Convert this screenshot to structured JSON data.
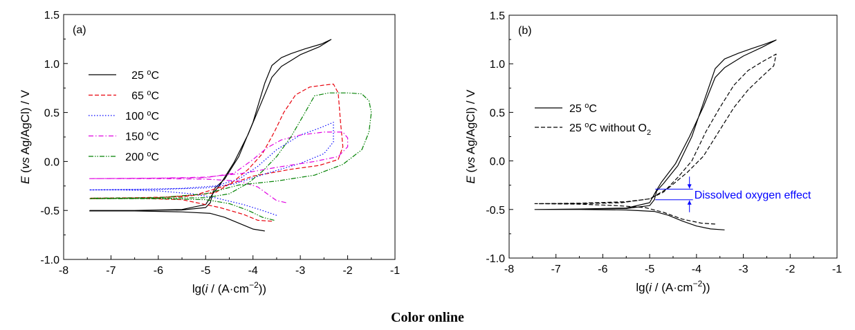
{
  "caption": "Color online",
  "chart_data": [
    {
      "type": "line",
      "panel_label": "(a)",
      "xlim": [
        -8,
        -1
      ],
      "ylim": [
        -1.0,
        1.5
      ],
      "x_ticks": [
        "-8",
        "-7",
        "-6",
        "-5",
        "-4",
        "-3",
        "-2",
        "-1"
      ],
      "y_ticks": [
        "-1.0",
        "-0.5",
        "0.0",
        "0.5",
        "1.0",
        "1.5"
      ],
      "legend_position": "upper-left",
      "series": [
        {
          "name": "25 °C",
          "color": "#000000",
          "style": "solid",
          "points": [
            [
              -3.75,
              -0.71
            ],
            [
              -4.0,
              -0.69
            ],
            [
              -4.3,
              -0.63
            ],
            [
              -4.6,
              -0.57
            ],
            [
              -4.9,
              -0.53
            ],
            [
              -5.5,
              -0.515
            ],
            [
              -6.5,
              -0.505
            ],
            [
              -7.45,
              -0.505
            ],
            [
              -6.5,
              -0.5
            ],
            [
              -5.5,
              -0.495
            ],
            [
              -5.0,
              -0.47
            ],
            [
              -4.9,
              -0.42
            ],
            [
              -4.85,
              -0.32
            ],
            [
              -4.8,
              -0.27
            ],
            [
              -4.6,
              -0.18
            ],
            [
              -4.3,
              0.05
            ],
            [
              -4.0,
              0.4
            ],
            [
              -3.75,
              0.8
            ],
            [
              -3.6,
              0.98
            ],
            [
              -3.4,
              1.06
            ],
            [
              -3.2,
              1.1
            ],
            [
              -2.9,
              1.15
            ],
            [
              -2.55,
              1.2
            ],
            [
              -2.35,
              1.245
            ],
            [
              -2.6,
              1.17
            ],
            [
              -3.0,
              1.09
            ],
            [
              -3.2,
              1.03
            ],
            [
              -3.4,
              0.97
            ],
            [
              -3.6,
              0.86
            ],
            [
              -3.85,
              0.57
            ],
            [
              -4.1,
              0.28
            ],
            [
              -4.4,
              -0.01
            ],
            [
              -4.7,
              -0.24
            ],
            [
              -4.85,
              -0.33
            ],
            [
              -5.0,
              -0.44
            ],
            [
              -5.5,
              -0.49
            ],
            [
              -6.5,
              -0.5
            ],
            [
              -7.45,
              -0.5
            ]
          ]
        },
        {
          "name": "65 °C",
          "color": "#e8000b",
          "style": "dashed",
          "points": [
            [
              -3.6,
              -0.61
            ],
            [
              -3.9,
              -0.6
            ],
            [
              -4.2,
              -0.54
            ],
            [
              -4.7,
              -0.47
            ],
            [
              -5.5,
              -0.39
            ],
            [
              -6.5,
              -0.375
            ],
            [
              -7.45,
              -0.375
            ],
            [
              -6.5,
              -0.37
            ],
            [
              -5.5,
              -0.36
            ],
            [
              -4.8,
              -0.32
            ],
            [
              -4.4,
              -0.2
            ],
            [
              -4.1,
              -0.08
            ],
            [
              -3.8,
              0.08
            ],
            [
              -3.55,
              0.3
            ],
            [
              -3.35,
              0.5
            ],
            [
              -3.1,
              0.68
            ],
            [
              -2.8,
              0.76
            ],
            [
              -2.5,
              0.78
            ],
            [
              -2.3,
              0.79
            ],
            [
              -2.2,
              0.7
            ],
            [
              -2.15,
              0.4
            ],
            [
              -2.1,
              0.15
            ],
            [
              -2.2,
              0.02
            ],
            [
              -2.6,
              -0.04
            ],
            [
              -3.2,
              -0.08
            ],
            [
              -4.0,
              -0.15
            ],
            [
              -4.6,
              -0.25
            ],
            [
              -5.2,
              -0.34
            ],
            [
              -6.0,
              -0.37
            ],
            [
              -7.45,
              -0.38
            ]
          ]
        },
        {
          "name": "100 °C",
          "color": "#0000ff",
          "style": "dotted",
          "points": [
            [
              -3.5,
              -0.55
            ],
            [
              -3.8,
              -0.5
            ],
            [
              -4.2,
              -0.44
            ],
            [
              -4.8,
              -0.37
            ],
            [
              -5.3,
              -0.33
            ],
            [
              -6.0,
              -0.3
            ],
            [
              -6.8,
              -0.29
            ],
            [
              -7.45,
              -0.29
            ],
            [
              -6.5,
              -0.285
            ],
            [
              -5.5,
              -0.275
            ],
            [
              -4.8,
              -0.25
            ],
            [
              -4.3,
              -0.18
            ],
            [
              -3.9,
              -0.05
            ],
            [
              -3.5,
              0.12
            ],
            [
              -3.0,
              0.27
            ],
            [
              -2.6,
              0.34
            ],
            [
              -2.3,
              0.4
            ],
            [
              -2.3,
              0.2
            ],
            [
              -2.5,
              0.08
            ],
            [
              -3.0,
              -0.02
            ],
            [
              -3.7,
              -0.12
            ],
            [
              -4.4,
              -0.23
            ],
            [
              -5.0,
              -0.27
            ],
            [
              -6.0,
              -0.285
            ],
            [
              -7.45,
              -0.29
            ]
          ]
        },
        {
          "name": "150 °C",
          "color": "#e000e0",
          "style": "dashdot",
          "points": [
            [
              -3.3,
              -0.42
            ],
            [
              -3.5,
              -0.4
            ],
            [
              -3.7,
              -0.33
            ],
            [
              -3.9,
              -0.26
            ],
            [
              -4.3,
              -0.2
            ],
            [
              -5.0,
              -0.18
            ],
            [
              -6.0,
              -0.175
            ],
            [
              -7.45,
              -0.175
            ],
            [
              -6.0,
              -0.17
            ],
            [
              -5.0,
              -0.165
            ],
            [
              -4.4,
              -0.12
            ],
            [
              -4.0,
              0.02
            ],
            [
              -3.7,
              0.14
            ],
            [
              -3.4,
              0.22
            ],
            [
              -3.0,
              0.27
            ],
            [
              -2.5,
              0.3
            ],
            [
              -2.1,
              0.3
            ],
            [
              -2.0,
              0.24
            ],
            [
              -2.0,
              0.15
            ],
            [
              -2.2,
              0.05
            ],
            [
              -2.7,
              0.0
            ],
            [
              -3.5,
              -0.06
            ],
            [
              -4.2,
              -0.12
            ],
            [
              -5.0,
              -0.16
            ],
            [
              -6.0,
              -0.17
            ],
            [
              -7.45,
              -0.175
            ]
          ]
        },
        {
          "name": "200 °C",
          "color": "#008000",
          "style": "dashdotdot",
          "points": [
            [
              -3.55,
              -0.6
            ],
            [
              -3.8,
              -0.57
            ],
            [
              -4.1,
              -0.5
            ],
            [
              -4.5,
              -0.43
            ],
            [
              -5.0,
              -0.39
            ],
            [
              -6.0,
              -0.38
            ],
            [
              -7.45,
              -0.38
            ],
            [
              -6.0,
              -0.375
            ],
            [
              -5.0,
              -0.37
            ],
            [
              -4.5,
              -0.33
            ],
            [
              -4.1,
              -0.22
            ],
            [
              -3.8,
              -0.1
            ],
            [
              -3.5,
              0.05
            ],
            [
              -3.2,
              0.25
            ],
            [
              -2.9,
              0.5
            ],
            [
              -2.7,
              0.67
            ],
            [
              -2.4,
              0.7
            ],
            [
              -2.0,
              0.7
            ],
            [
              -1.7,
              0.69
            ],
            [
              -1.55,
              0.62
            ],
            [
              -1.5,
              0.5
            ],
            [
              -1.55,
              0.3
            ],
            [
              -1.7,
              0.12
            ],
            [
              -2.1,
              -0.03
            ],
            [
              -2.7,
              -0.14
            ],
            [
              -3.5,
              -0.2
            ],
            [
              -4.3,
              -0.24
            ],
            [
              -5.0,
              -0.33
            ],
            [
              -6.0,
              -0.37
            ],
            [
              -7.45,
              -0.375
            ]
          ]
        }
      ]
    },
    {
      "type": "line",
      "panel_label": "(b)",
      "xlim": [
        -8,
        -1
      ],
      "ylim": [
        -1.0,
        1.5
      ],
      "x_ticks": [
        "-8",
        "-7",
        "-6",
        "-5",
        "-4",
        "-3",
        "-2",
        "-1"
      ],
      "y_ticks": [
        "-1.0",
        "-0.5",
        "0.0",
        "0.5",
        "1.0",
        "1.5"
      ],
      "legend_position": "middle-left",
      "annotation": {
        "text": "Dissolved oxygen effect",
        "color": "#0000ff",
        "y_upper": -0.29,
        "y_lower": -0.4
      },
      "series": [
        {
          "name": "25 °C",
          "color": "#000000",
          "style": "solid",
          "points": [
            [
              -3.4,
              -0.71
            ],
            [
              -3.7,
              -0.7
            ],
            [
              -4.0,
              -0.67
            ],
            [
              -4.3,
              -0.62
            ],
            [
              -4.6,
              -0.56
            ],
            [
              -4.9,
              -0.52
            ],
            [
              -5.5,
              -0.505
            ],
            [
              -6.5,
              -0.5
            ],
            [
              -7.45,
              -0.5
            ],
            [
              -6.5,
              -0.495
            ],
            [
              -5.5,
              -0.49
            ],
            [
              -5.0,
              -0.46
            ],
            [
              -4.9,
              -0.4
            ],
            [
              -4.85,
              -0.31
            ],
            [
              -4.7,
              -0.23
            ],
            [
              -4.4,
              -0.05
            ],
            [
              -4.1,
              0.25
            ],
            [
              -3.85,
              0.6
            ],
            [
              -3.6,
              0.95
            ],
            [
              -3.4,
              1.05
            ],
            [
              -3.1,
              1.11
            ],
            [
              -2.8,
              1.16
            ],
            [
              -2.55,
              1.2
            ],
            [
              -2.3,
              1.245
            ],
            [
              -2.6,
              1.17
            ],
            [
              -3.0,
              1.08
            ],
            [
              -3.2,
              1.02
            ],
            [
              -3.4,
              0.96
            ],
            [
              -3.6,
              0.86
            ],
            [
              -3.85,
              0.56
            ],
            [
              -4.15,
              0.25
            ],
            [
              -4.45,
              -0.03
            ],
            [
              -4.75,
              -0.22
            ],
            [
              -4.85,
              -0.3
            ],
            [
              -5.0,
              -0.43
            ],
            [
              -5.5,
              -0.485
            ],
            [
              -6.5,
              -0.495
            ],
            [
              -7.45,
              -0.5
            ]
          ]
        },
        {
          "name": "25 °C without O2",
          "color": "#000000",
          "style": "dashed",
          "points": [
            [
              -3.6,
              -0.65
            ],
            [
              -3.9,
              -0.64
            ],
            [
              -4.3,
              -0.6
            ],
            [
              -4.7,
              -0.53
            ],
            [
              -5.1,
              -0.48
            ],
            [
              -5.7,
              -0.46
            ],
            [
              -6.5,
              -0.445
            ],
            [
              -7.45,
              -0.44
            ],
            [
              -6.5,
              -0.435
            ],
            [
              -5.5,
              -0.42
            ],
            [
              -5.0,
              -0.39
            ],
            [
              -4.7,
              -0.32
            ],
            [
              -4.4,
              -0.17
            ],
            [
              -4.1,
              0.0
            ],
            [
              -3.8,
              0.3
            ],
            [
              -3.5,
              0.55
            ],
            [
              -3.2,
              0.78
            ],
            [
              -2.9,
              0.93
            ],
            [
              -2.6,
              1.02
            ],
            [
              -2.3,
              1.1
            ],
            [
              -2.35,
              0.98
            ],
            [
              -2.6,
              0.87
            ],
            [
              -2.9,
              0.73
            ],
            [
              -3.2,
              0.55
            ],
            [
              -3.5,
              0.32
            ],
            [
              -3.85,
              0.05
            ],
            [
              -4.2,
              -0.12
            ],
            [
              -4.6,
              -0.28
            ],
            [
              -5.0,
              -0.39
            ],
            [
              -5.6,
              -0.43
            ],
            [
              -6.5,
              -0.44
            ],
            [
              -7.45,
              -0.44
            ]
          ]
        }
      ]
    }
  ]
}
